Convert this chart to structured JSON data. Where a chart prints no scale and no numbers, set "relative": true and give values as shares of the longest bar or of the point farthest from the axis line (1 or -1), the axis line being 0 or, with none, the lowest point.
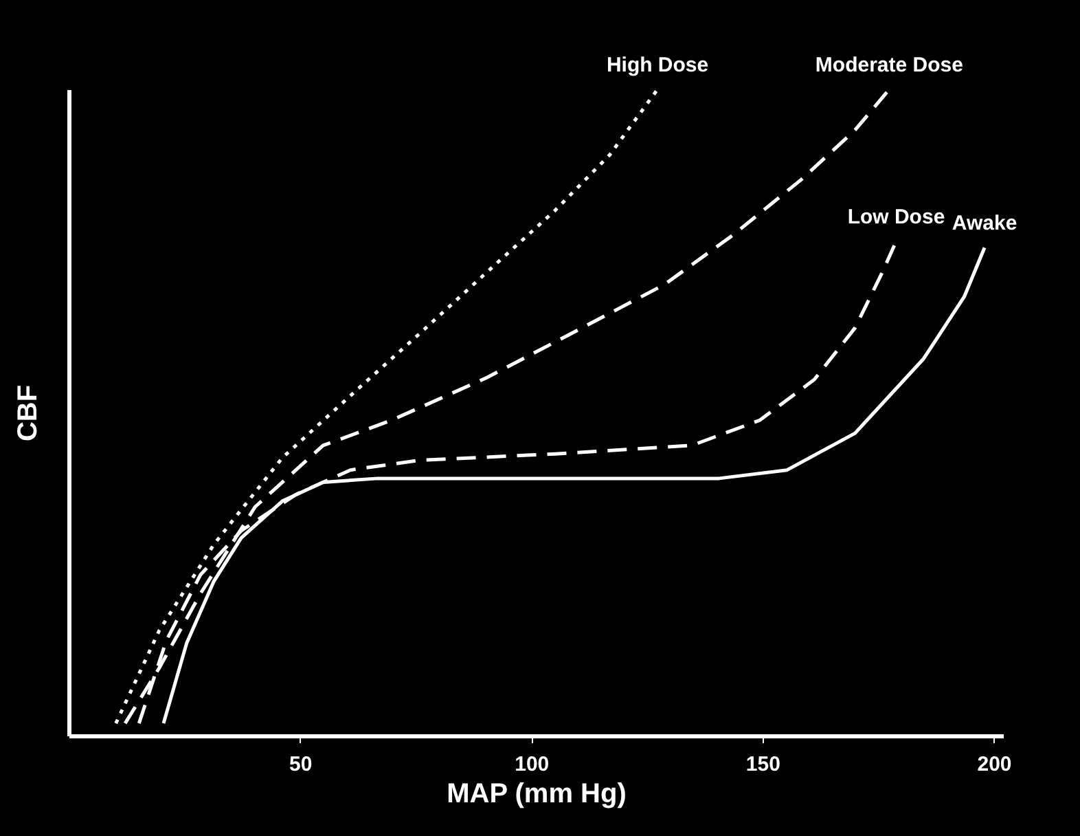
{
  "chart_data": {
    "type": "line",
    "xlabel": "MAP  (mm Hg)",
    "ylabel": "CBF",
    "relative": true,
    "xlim": [
      0,
      202
    ],
    "xticks": [
      50,
      100,
      150,
      200
    ],
    "grid": false,
    "legend": false,
    "marker": "none",
    "series": [
      {
        "name": "High Dose",
        "color": "#ffffff",
        "line_style": "dotted",
        "x": [
          10.2,
          19.6,
          31.4,
          46.2,
          60.9,
          75.7,
          90.4,
          105.2,
          117,
          127.3
        ],
        "values": [
          0.019,
          0.163,
          0.296,
          0.43,
          0.526,
          0.621,
          0.717,
          0.813,
          0.899,
          1.0
        ]
      },
      {
        "name": "Moderate Dose",
        "color": "#ffffff",
        "line_style": "dashed",
        "x": [
          12.2,
          19.6,
          28.5,
          40.3,
          55,
          69.8,
          90.4,
          111,
          128.8,
          143.5,
          158.3,
          170,
          177.4
        ],
        "values": [
          0.019,
          0.105,
          0.22,
          0.354,
          0.449,
          0.488,
          0.554,
          0.631,
          0.698,
          0.774,
          0.86,
          0.937,
          1.0
        ]
      },
      {
        "name": "Low Dose",
        "color": "#ffffff",
        "line_style": "dashed",
        "x": [
          15.2,
          21.1,
          28.5,
          37.3,
          49.1,
          60.9,
          75.7,
          105.2,
          134.7,
          149.4,
          161.2,
          170,
          175.9,
          178.9
        ],
        "values": [
          0.019,
          0.147,
          0.249,
          0.317,
          0.373,
          0.411,
          0.426,
          0.436,
          0.449,
          0.488,
          0.551,
          0.631,
          0.717,
          0.765
        ]
      },
      {
        "name": "Awake",
        "color": "#ffffff",
        "line_style": "solid",
        "x": [
          20.5,
          25.5,
          31.4,
          37.3,
          46.2,
          55,
          66.8,
          96.3,
          140.6,
          155.3,
          170,
          184.8,
          193.6,
          198
        ],
        "values": [
          0.019,
          0.143,
          0.239,
          0.306,
          0.363,
          0.392,
          0.398,
          0.398,
          0.398,
          0.411,
          0.468,
          0.583,
          0.679,
          0.755
        ]
      }
    ]
  }
}
